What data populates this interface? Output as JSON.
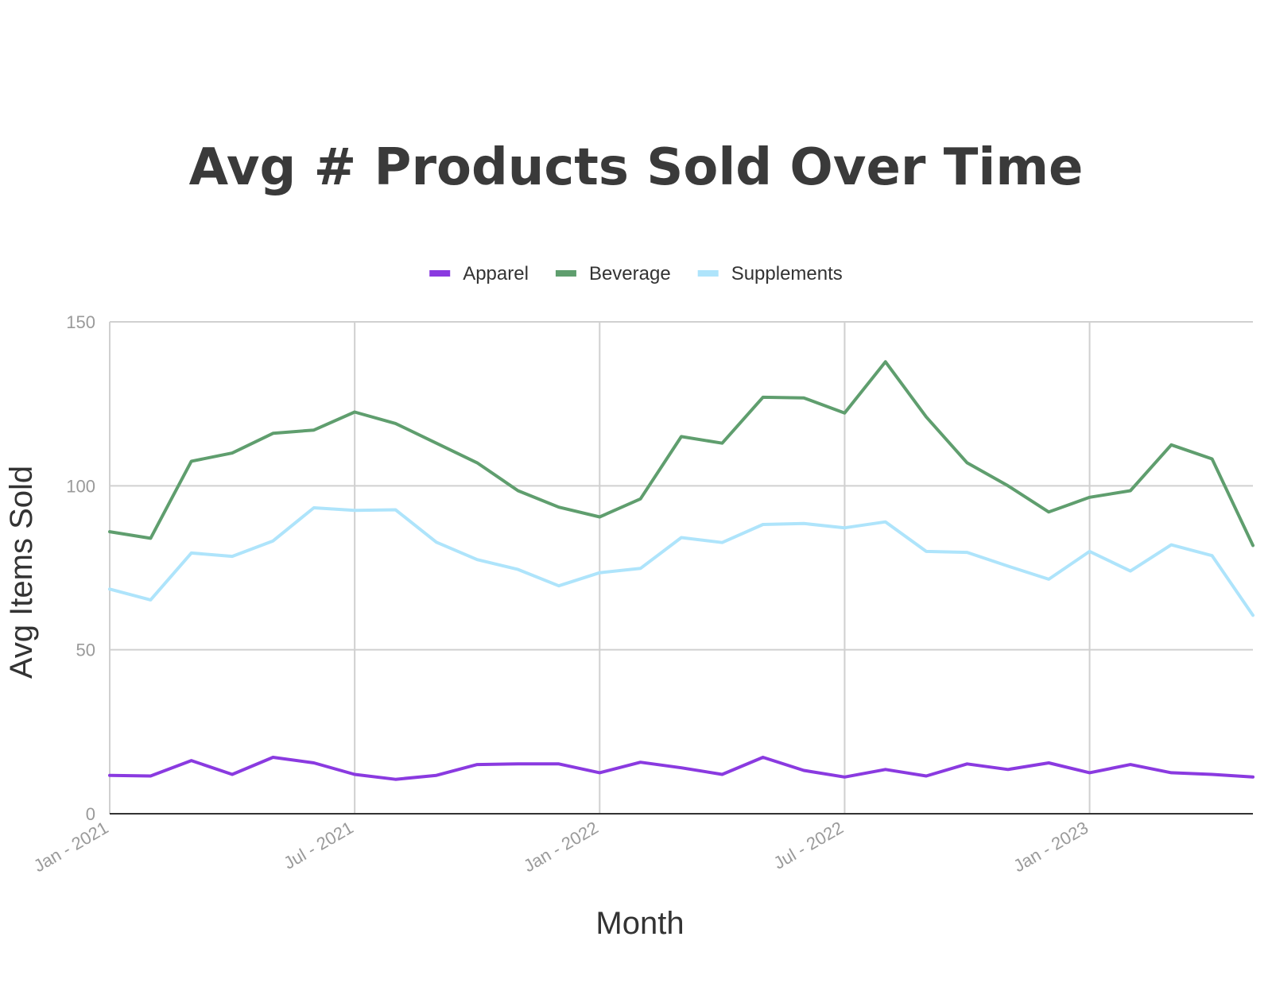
{
  "chart_data": {
    "type": "line",
    "title": "Avg # Products Sold Over Time",
    "xlabel": "Month",
    "ylabel": "Avg Items Sold",
    "ylim": [
      0,
      150
    ],
    "yticks": [
      "0",
      "50",
      "100",
      "150"
    ],
    "ytick_values": [
      0,
      50,
      100,
      150
    ],
    "xticks": [
      {
        "label": "Jan - 2021",
        "index": 0
      },
      {
        "label": "Jul - 2021",
        "index": 6
      },
      {
        "label": "Jan - 2022",
        "index": 12
      },
      {
        "label": "Jul - 2022",
        "index": 18
      },
      {
        "label": "Jan - 2023",
        "index": 24
      }
    ],
    "x": [
      "Jan 2021",
      "Feb 2021",
      "Mar 2021",
      "Apr 2021",
      "May 2021",
      "Jun 2021",
      "Jul 2021",
      "Aug 2021",
      "Sep 2021",
      "Oct 2021",
      "Nov 2021",
      "Dec 2021",
      "Jan 2022",
      "Feb 2022",
      "Mar 2022",
      "Apr 2022",
      "May 2022",
      "Jun 2022",
      "Jul 2022",
      "Aug 2022",
      "Sep 2022",
      "Oct 2022",
      "Nov 2022",
      "Dec 2022",
      "Jan 2023",
      "Feb 2023",
      "Mar 2023",
      "Apr 2023",
      "May 2023"
    ],
    "legend_position": "top-center",
    "grid": true,
    "series": [
      {
        "name": "Apparel",
        "color": "#8a3ae0",
        "values": [
          11.7,
          11.5,
          16.2,
          12.0,
          17.2,
          15.5,
          12.0,
          10.5,
          11.7,
          15.0,
          15.2,
          15.2,
          12.5,
          15.7,
          14.0,
          12.0,
          17.2,
          13.2,
          11.2,
          13.5,
          11.5,
          15.2,
          13.5,
          15.5,
          12.5,
          15.0,
          12.5,
          12.0,
          11.2
        ]
      },
      {
        "name": "Beverage",
        "color": "#5f9e6e",
        "values": [
          86.0,
          84.0,
          107.5,
          110.0,
          116.0,
          117.0,
          122.5,
          119.0,
          113.0,
          107.0,
          98.5,
          93.5,
          90.5,
          96.0,
          115.0,
          113.0,
          127.0,
          126.8,
          122.2,
          137.8,
          121.0,
          107.0,
          100.0,
          92.0,
          96.5,
          98.5,
          112.5,
          108.2,
          81.8
        ]
      },
      {
        "name": "Supplements",
        "color": "#aee4fb",
        "values": [
          68.5,
          65.2,
          79.5,
          78.5,
          83.2,
          93.3,
          92.5,
          92.7,
          82.8,
          77.5,
          74.5,
          69.5,
          73.5,
          74.8,
          84.2,
          82.7,
          88.2,
          88.5,
          87.2,
          89.0,
          80.0,
          79.7,
          75.5,
          71.5,
          80.0,
          74.0,
          82.0,
          78.7,
          60.5
        ]
      }
    ]
  }
}
